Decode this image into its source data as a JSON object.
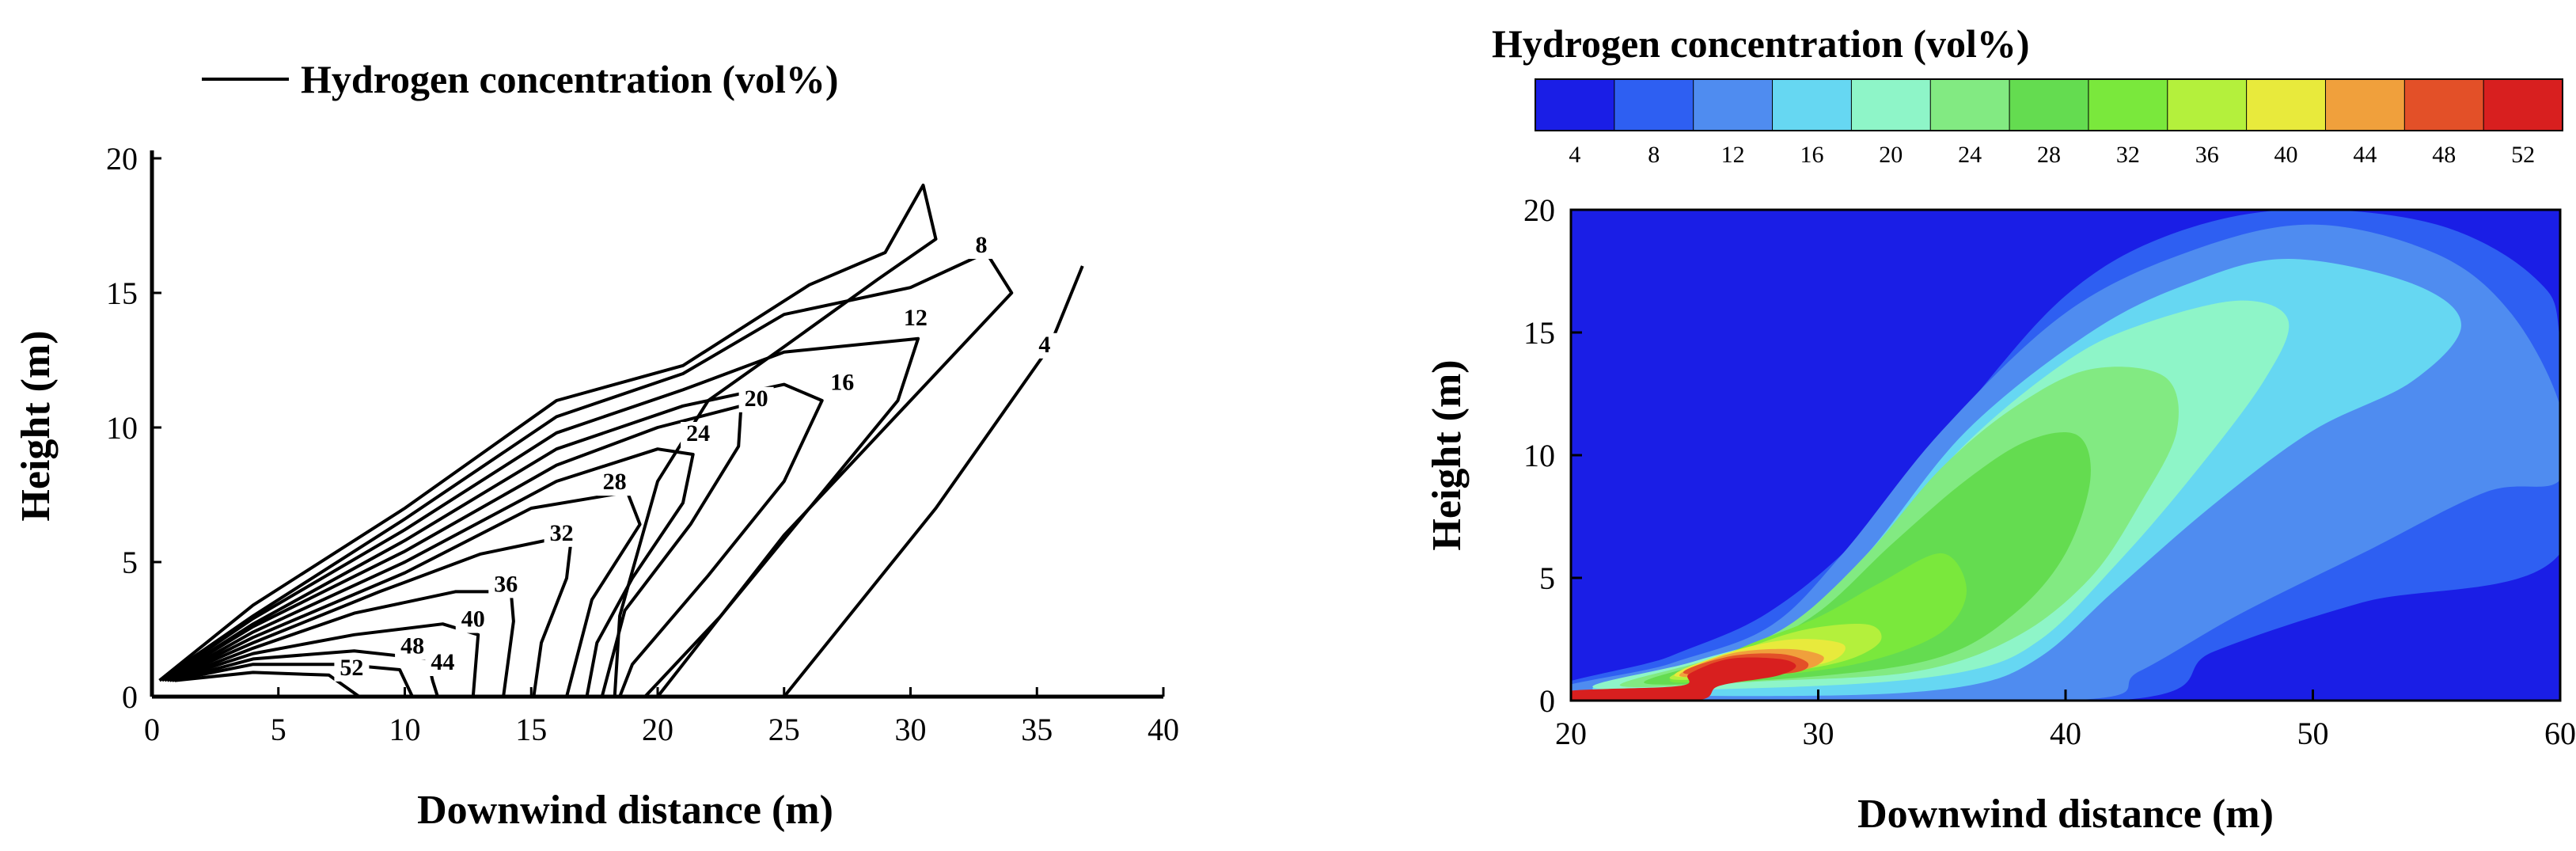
{
  "chart_data": [
    {
      "type": "contour",
      "title": "",
      "legend": [
        "Hydrogen concentration (vol%)"
      ],
      "xlabel": "Downwind distance (m)",
      "ylabel": "Height (m)",
      "xlim": [
        0,
        40
      ],
      "ylim": [
        0,
        20
      ],
      "xticks": [
        0,
        5,
        10,
        15,
        20,
        25,
        30,
        35,
        40
      ],
      "yticks": [
        0,
        5,
        10,
        15,
        20
      ],
      "contour_levels": [
        {
          "label": "4",
          "x": 35.3,
          "y": 12.8
        },
        {
          "label": "8",
          "x": 32.8,
          "y": 16.5
        },
        {
          "label": "12",
          "x": 30.2,
          "y": 13.8
        },
        {
          "label": "16",
          "x": 27.3,
          "y": 11.4
        },
        {
          "label": "20",
          "x": 23.9,
          "y": 10.8
        },
        {
          "label": "24",
          "x": 21.6,
          "y": 9.5
        },
        {
          "label": "28",
          "x": 18.3,
          "y": 7.7
        },
        {
          "label": "32",
          "x": 16.2,
          "y": 5.8
        },
        {
          "label": "36",
          "x": 14.0,
          "y": 3.9
        },
        {
          "label": "40",
          "x": 12.7,
          "y": 2.6
        },
        {
          "label": "44",
          "x": 11.5,
          "y": 1.0
        },
        {
          "label": "48",
          "x": 10.3,
          "y": 1.6
        },
        {
          "label": "52",
          "x": 7.9,
          "y": 0.8
        }
      ]
    },
    {
      "type": "heatmap",
      "title": "Hydrogen concentration (vol%)",
      "xlabel": "Downwind distance (m)",
      "ylabel": "Height (m)",
      "xlim": [
        20,
        60
      ],
      "ylim": [
        0,
        20
      ],
      "xticks": [
        20,
        30,
        40,
        50,
        60
      ],
      "yticks": [
        0,
        5,
        10,
        15,
        20
      ],
      "colorbar_ticks": [
        "4",
        "8",
        "12",
        "16",
        "20",
        "24",
        "28",
        "32",
        "36",
        "40",
        "44",
        "48",
        "52"
      ],
      "colorbar_colors": [
        "#1a1ee6",
        "#2e5ff2",
        "#4f8cf0",
        "#66d7f2",
        "#8ef5c8",
        "#82ea82",
        "#64dc50",
        "#7ae83c",
        "#b4f03c",
        "#e8ea3c",
        "#f0a03c",
        "#e35028",
        "#d81f1f"
      ],
      "regions": [
        {
          "level": 4,
          "color": "#1a1ee6",
          "points": [
            [
              20,
              0
            ],
            [
              60,
              0
            ],
            [
              60,
              20
            ],
            [
              20,
              20
            ]
          ]
        },
        {
          "level": 8,
          "color": "#2e5ff2",
          "points": [
            [
              20,
              0.2
            ],
            [
              24,
              1.8
            ],
            [
              28,
              3.6
            ],
            [
              32,
              7
            ],
            [
              36,
              12
            ],
            [
              40,
              16.5
            ],
            [
              44,
              18.9
            ],
            [
              49,
              20
            ],
            [
              55,
              19.4
            ],
            [
              59,
              17.2
            ],
            [
              60,
              14.5
            ],
            [
              60,
              6
            ],
            [
              52,
              4
            ],
            [
              46,
              2
            ],
            [
              42,
              0
            ]
          ]
        },
        {
          "level": 12,
          "color": "#4f8cf0",
          "points": [
            [
              20,
              0.2
            ],
            [
              24,
              1.5
            ],
            [
              28,
              3
            ],
            [
              31,
              6
            ],
            [
              35,
              11
            ],
            [
              40,
              15.8
            ],
            [
              45,
              18.3
            ],
            [
              50,
              19.4
            ],
            [
              55,
              18.2
            ],
            [
              58,
              15.8
            ],
            [
              60,
              12
            ],
            [
              60,
              9
            ],
            [
              57,
              8.5
            ],
            [
              52,
              6
            ],
            [
              47,
              3.5
            ],
            [
              43,
              1.2
            ],
            [
              40,
              0
            ]
          ]
        },
        {
          "level": 16,
          "color": "#66d7f2",
          "points": [
            [
              21,
              0.4
            ],
            [
              25,
              1.6
            ],
            [
              29,
              3
            ],
            [
              32,
              6
            ],
            [
              36,
              11
            ],
            [
              41,
              15
            ],
            [
              45,
              17
            ],
            [
              49,
              18
            ],
            [
              54,
              17
            ],
            [
              56,
              15.3
            ],
            [
              54,
              13
            ],
            [
              50,
              11
            ],
            [
              46,
              8
            ],
            [
              42,
              4.5
            ],
            [
              39,
              1.8
            ],
            [
              36,
              0.6
            ],
            [
              30,
              0.2
            ]
          ]
        },
        {
          "level": 20,
          "color": "#8ef5c8",
          "points": [
            [
              21,
              0.5
            ],
            [
              25,
              1.6
            ],
            [
              29,
              3
            ],
            [
              32,
              6
            ],
            [
              36,
              10.5
            ],
            [
              40,
              13.8
            ],
            [
              43,
              15.3
            ],
            [
              47,
              16.3
            ],
            [
              49,
              15.5
            ],
            [
              48,
              13
            ],
            [
              45,
              9
            ],
            [
              42,
              5.5
            ],
            [
              39,
              2.5
            ],
            [
              36,
              1.2
            ],
            [
              30,
              0.6
            ]
          ]
        },
        {
          "level": 24,
          "color": "#82ea82",
          "points": [
            [
              22,
              0.6
            ],
            [
              26,
              1.8
            ],
            [
              29,
              3.2
            ],
            [
              32,
              6
            ],
            [
              35,
              9.5
            ],
            [
              38,
              12
            ],
            [
              41,
              13.5
            ],
            [
              44,
              13.2
            ],
            [
              44.5,
              11
            ],
            [
              43,
              8
            ],
            [
              41,
              5
            ],
            [
              38,
              2.6
            ],
            [
              34,
              1.2
            ],
            [
              28,
              0.8
            ]
          ]
        },
        {
          "level": 28,
          "color": "#64dc50",
          "points": [
            [
              23,
              0.7
            ],
            [
              27,
              2
            ],
            [
              30,
              3.6
            ],
            [
              33,
              6.4
            ],
            [
              36,
              9
            ],
            [
              38.5,
              10.6
            ],
            [
              40.5,
              10.8
            ],
            [
              41,
              9
            ],
            [
              40,
              6
            ],
            [
              38,
              3.6
            ],
            [
              35,
              1.8
            ],
            [
              30,
              1
            ]
          ]
        },
        {
          "level": 32,
          "color": "#7ae83c",
          "points": [
            [
              24,
              0.8
            ],
            [
              27,
              2.2
            ],
            [
              30,
              3.4
            ],
            [
              32.5,
              4.8
            ],
            [
              35,
              6
            ],
            [
              36,
              4.5
            ],
            [
              35,
              2.8
            ],
            [
              32,
              1.6
            ],
            [
              28,
              1
            ]
          ]
        },
        {
          "level": 36,
          "color": "#b4f03c",
          "points": [
            [
              24,
              0.9
            ],
            [
              27,
              2.1
            ],
            [
              29.5,
              2.9
            ],
            [
              32,
              3.1
            ],
            [
              32.5,
              2.4
            ],
            [
              31,
              1.6
            ],
            [
              28,
              1.1
            ]
          ]
        },
        {
          "level": 40,
          "color": "#e8ea3c",
          "points": [
            [
              24.2,
              1
            ],
            [
              26.5,
              2
            ],
            [
              29,
              2.5
            ],
            [
              31,
              2.3
            ],
            [
              30.5,
              1.6
            ],
            [
              28,
              1.2
            ]
          ]
        },
        {
          "level": 44,
          "color": "#f0a03c",
          "points": [
            [
              24.4,
              1
            ],
            [
              26.4,
              1.9
            ],
            [
              28.8,
              2.1
            ],
            [
              30.2,
              1.8
            ],
            [
              29.6,
              1.3
            ],
            [
              27.6,
              1.1
            ]
          ]
        },
        {
          "level": 48,
          "color": "#e35028",
          "points": [
            [
              24.6,
              1.1
            ],
            [
              26.4,
              1.8
            ],
            [
              28.5,
              1.9
            ],
            [
              29.6,
              1.5
            ],
            [
              28.7,
              1.1
            ]
          ]
        },
        {
          "level": 52,
          "color": "#d81f1f",
          "points": [
            [
              20,
              0
            ],
            [
              20,
              0.4
            ],
            [
              24.4,
              0.6
            ],
            [
              24.8,
              1.1
            ],
            [
              26.4,
              1.7
            ],
            [
              28.4,
              1.7
            ],
            [
              29.1,
              1.4
            ],
            [
              28.3,
              1
            ],
            [
              26,
              0.6
            ],
            [
              25,
              0
            ],
            [
              20,
              0
            ]
          ]
        }
      ]
    }
  ]
}
